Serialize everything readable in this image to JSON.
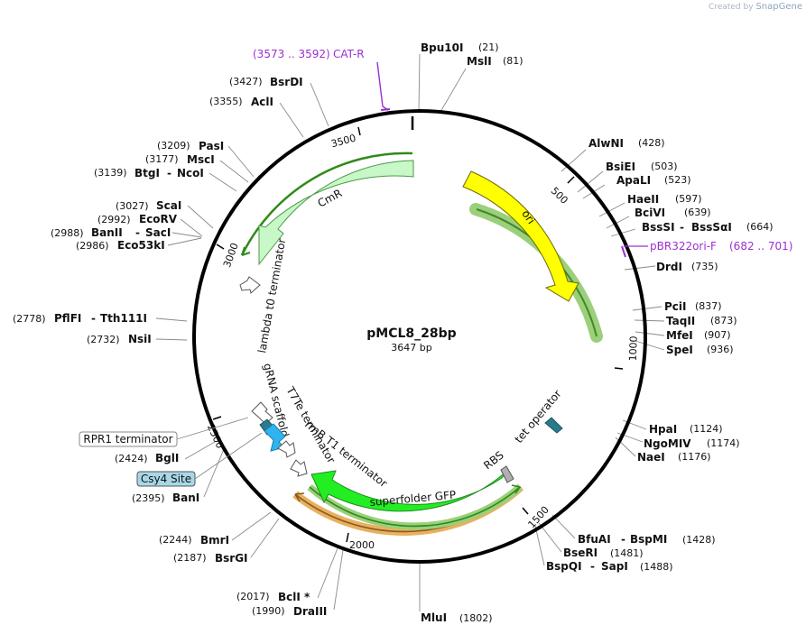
{
  "watermark": {
    "prefix": "Created by",
    "brand": "SnapGene"
  },
  "plasmid": {
    "name": "pMCL8_28bp",
    "size_label": "3647 bp"
  },
  "ticks": [
    "500",
    "1000",
    "1500",
    "2000",
    "2500",
    "3000",
    "3500"
  ],
  "enzymes": {
    "bpu10i": {
      "name": "Bpu10I",
      "pos": "(21)"
    },
    "msli": {
      "name": "MslI",
      "pos": "(81)"
    },
    "alwni": {
      "name": "AlwNI",
      "pos": "(428)"
    },
    "bsiei": {
      "name": "BsiEI",
      "pos": "(503)"
    },
    "apali": {
      "name": "ApaLI",
      "pos": "(523)"
    },
    "haeii": {
      "name": "HaeII",
      "pos": "(597)"
    },
    "bcivi": {
      "name": "BciVI",
      "pos": "(639)"
    },
    "bsssi": {
      "name": "BssSI",
      "name2": "BssSαI",
      "pos": "(664)"
    },
    "drdi": {
      "name": "DrdI",
      "pos": "(735)"
    },
    "pcii": {
      "name": "PciI",
      "pos": "(837)"
    },
    "taqii": {
      "name": "TaqII",
      "pos": "(873)"
    },
    "mfei": {
      "name": "MfeI",
      "pos": "(907)"
    },
    "spei": {
      "name": "SpeI",
      "pos": "(936)"
    },
    "hpai": {
      "name": "HpaI",
      "pos": "(1124)"
    },
    "ngomiv": {
      "name": "NgoMIV",
      "pos": "(1174)"
    },
    "naei": {
      "name": "NaeI",
      "pos": "(1176)"
    },
    "bfuai": {
      "name": "BfuAI",
      "name2": "BspMI",
      "pos": "(1428)"
    },
    "bseri": {
      "name": "BseRI",
      "pos": "(1481)"
    },
    "bspqi": {
      "name": "BspQI",
      "name2": "SapI",
      "pos": "(1488)"
    },
    "mlui": {
      "name": "MluI",
      "pos": "(1802)"
    },
    "dralll": {
      "name": "DraIII",
      "pos": "(1990)"
    },
    "bcli": {
      "name": "BclI *",
      "pos": "(2017)"
    },
    "bsrgi": {
      "name": "BsrGI",
      "pos": "(2187)"
    },
    "bmri": {
      "name": "BmrI",
      "pos": "(2244)"
    },
    "bani": {
      "name": "BanI",
      "pos": "(2395)"
    },
    "bgli": {
      "name": "BglI",
      "pos": "(2424)"
    },
    "nsii": {
      "name": "NsiI",
      "pos": "(2732)"
    },
    "pflfi": {
      "name": "PflFI",
      "name2": "Tth111I",
      "pos": "(2778)"
    },
    "eco53ki": {
      "name": "Eco53kI",
      "pos": "(2986)"
    },
    "banii": {
      "name": "BanII",
      "name2": "SacI",
      "pos": "(2988)"
    },
    "ecorv": {
      "name": "EcoRV",
      "pos": "(2992)"
    },
    "scai": {
      "name": "ScaI",
      "pos": "(3027)"
    },
    "btgi": {
      "name": "BtgI",
      "name2": "NcoI",
      "pos": "(3139)"
    },
    "msci": {
      "name": "MscI",
      "pos": "(3177)"
    },
    "pasi": {
      "name": "PasI",
      "pos": "(3209)"
    },
    "acli": {
      "name": "AclI",
      "pos": "(3355)"
    },
    "bsrdi": {
      "name": "BsrDI",
      "pos": "(3427)"
    }
  },
  "primers": {
    "catr": {
      "range": "(3573 .. 3592)",
      "name": "CAT-R"
    },
    "pbr": {
      "name": "pBR322ori-F",
      "range": "(682 .. 701)"
    }
  },
  "features": {
    "ori": "ori",
    "cmr": "CmR",
    "lambda": "lambda t0 terminator",
    "grna": "gRNA scaffold",
    "t7te": "T7Te terminator",
    "rrnb": "rrnB T1 terminator",
    "sfgfp": "superfolder GFP",
    "rbs": "RBS",
    "tetop": "tet operator"
  },
  "boxed_labels": {
    "rpr1": "RPR1 terminator",
    "csy4": "Csy4 Site"
  },
  "colors": {
    "ori": "#ffff00",
    "cmr": "#c8f7c8",
    "sfgfp": "#22ee22",
    "gray_arrow": "#ffffff",
    "csy4": "#2fb4ef",
    "tet_operator": "#2a7a8c",
    "primer": "#9b30d0",
    "csy4_box": "#a8d8e8"
  }
}
